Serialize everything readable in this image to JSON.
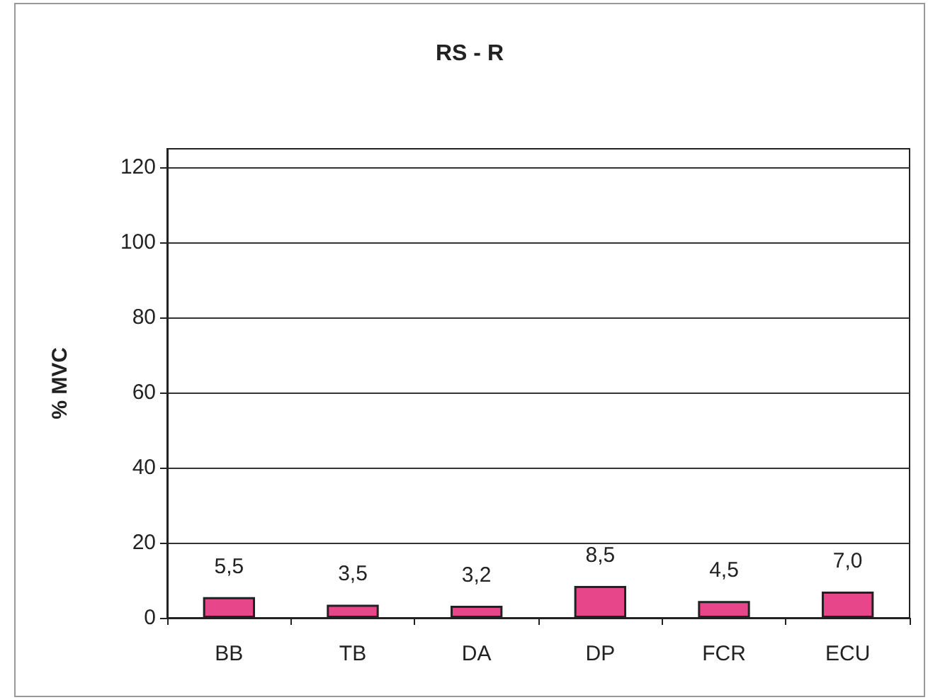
{
  "chart_data": {
    "type": "bar",
    "title": "RS - R",
    "ylabel": "% MVC",
    "categories": [
      "BB",
      "TB",
      "DA",
      "DP",
      "FCR",
      "ECU"
    ],
    "values": [
      5.5,
      3.5,
      3.2,
      8.5,
      4.5,
      7.0
    ],
    "value_labels": [
      "5,5",
      "3,5",
      "3,2",
      "8,5",
      "4,5",
      "7,0"
    ],
    "color": "#e8468a",
    "ylim": [
      0,
      125
    ],
    "yticks": [
      0,
      20,
      40,
      60,
      80,
      100,
      120
    ],
    "grid": "y"
  }
}
